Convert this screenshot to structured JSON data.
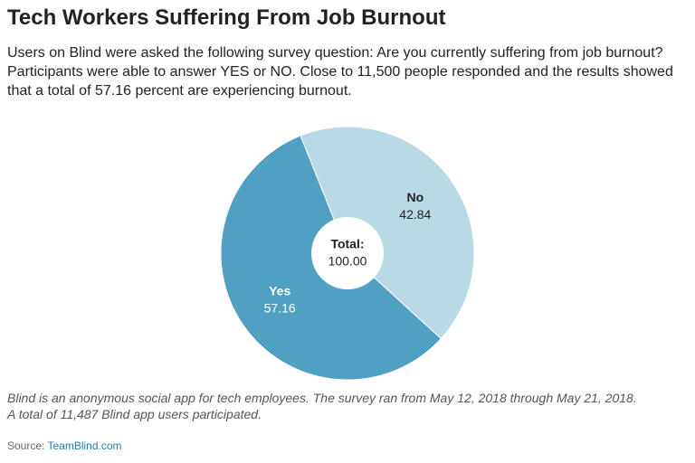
{
  "chart_data": {
    "type": "donut",
    "title": "Tech Workers Suffering From Job Burnout",
    "subtitle": "Users on Blind were asked the following survey question: Are you currently suffering from job burnout? Participants were able to answer YES or NO. Close to 11,500 people responded and the results showed that a total of 57.16 percent are experiencing burnout.",
    "categories": [
      "No",
      "Yes"
    ],
    "values": [
      42.84,
      57.16
    ],
    "colors": [
      "#b9d9e5",
      "#4fa0c2"
    ],
    "total_label": "Total:",
    "total": {
      "value": 100,
      "label": "100.00"
    },
    "notes": [
      "Blind is an anonymous social app for tech employees. The survey ran from May 12, 2018 through May 21, 2018.",
      "A total of 11,487 Blind app users participated."
    ],
    "source_label": "Source:",
    "source": "TeamBlind.com"
  }
}
